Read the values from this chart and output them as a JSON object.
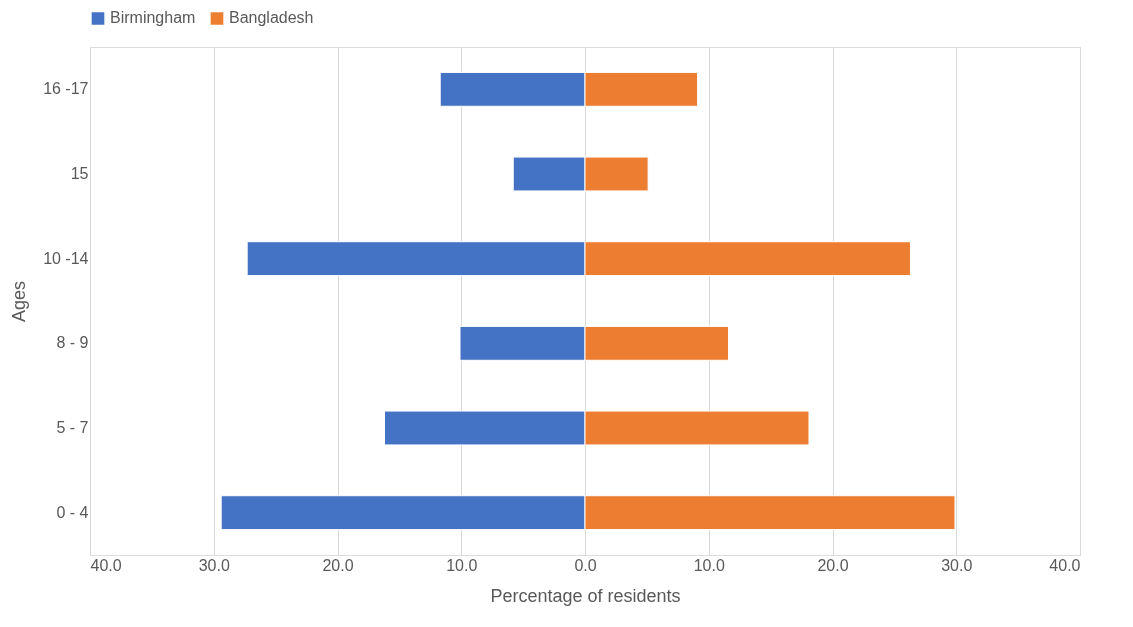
{
  "chart_data": {
    "type": "bar",
    "orientation": "horizontal",
    "xlabel": "Percentage of residents",
    "ylabel": "Ages",
    "categories": [
      "16 -17",
      "15",
      "10 -14",
      "8 - 9",
      "5 - 7",
      "0 - 4"
    ],
    "series": [
      {
        "name": "Birmingham",
        "color": "#4472c4",
        "values": [
          -11.7,
          -5.8,
          -27.3,
          -10.1,
          -16.2,
          -29.4
        ]
      },
      {
        "name": "Bangladesh",
        "color": "#ed7d31",
        "values": [
          9.1,
          5.1,
          26.3,
          11.6,
          18.1,
          29.9
        ]
      }
    ],
    "xlim": [
      -40,
      40
    ],
    "xticks": [
      {
        "value": -40,
        "label": "40.0"
      },
      {
        "value": -30,
        "label": "30.0"
      },
      {
        "value": -20,
        "label": "20.0"
      },
      {
        "value": -10,
        "label": "10.0"
      },
      {
        "value": 0,
        "label": "0.0"
      },
      {
        "value": 10,
        "label": "10.0"
      },
      {
        "value": 20,
        "label": "20.0"
      },
      {
        "value": 30,
        "label": "30.0"
      },
      {
        "value": 40,
        "label": "40.0"
      }
    ],
    "grid": "x",
    "legend": "top",
    "stacked": true
  }
}
